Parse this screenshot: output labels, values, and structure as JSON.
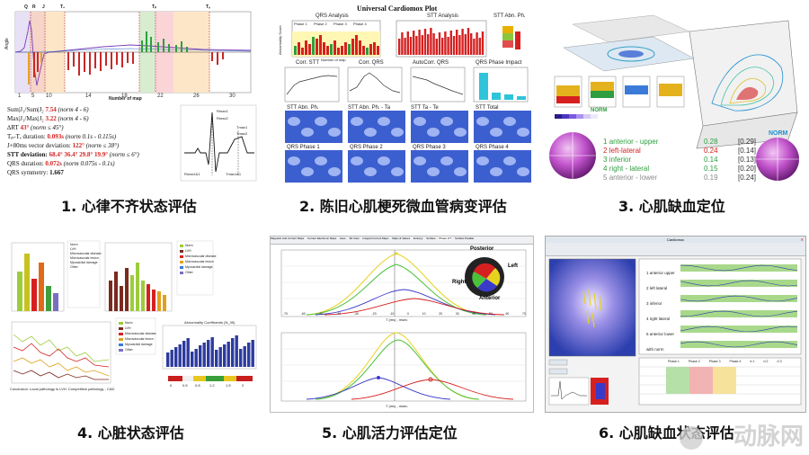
{
  "captions": [
    {
      "num": "1.",
      "text": "心律不齐状态评估"
    },
    {
      "num": "2.",
      "text": "陈旧心肌梗死微血管病变评估"
    },
    {
      "num": "3.",
      "text": "心肌缺血定位"
    },
    {
      "num": "4.",
      "text": "心脏状态评估"
    },
    {
      "num": "5.",
      "text": "心肌活力评估定位"
    },
    {
      "num": "6.",
      "text": "心肌缺血状态评估"
    }
  ],
  "panel1": {
    "ylabel": "Angle",
    "xlabel": "Number of map",
    "markers": [
      "Q",
      "R",
      "J",
      "T₀",
      "Tₚ",
      "Tₑ"
    ],
    "stats": [
      {
        "label": "Sum|J₁/Sum|J₂",
        "value": "7.54",
        "note": "(norm 4 - 6)"
      },
      {
        "label": "Max|J₁/Max|J₂",
        "value": "3.22",
        "note": "(norm 4 - 6)"
      },
      {
        "label": "∆RT",
        "value": "43°",
        "note": "(norm ≤ 45°)"
      },
      {
        "label": "Tₚ-Tₑ duration:",
        "value": "0.093s",
        "note": "(norm 0.1s - 0.115s)"
      },
      {
        "label": "J+80ms vector deviation:",
        "value": "122°",
        "note": "(norm ≤ 38°)"
      },
      {
        "label": "STT deviation:",
        "value": "68.4°  36.4°  29.8°  19.9°",
        "note": "(norm ≤ 6°)"
      },
      {
        "label": "QRS duration:",
        "value": "0.072s",
        "note": "(norm 0.075s - 0.1s)"
      },
      {
        "label": "QRS symmetry:",
        "value": "1.667",
        "note": ""
      }
    ],
    "ecg_labels": [
      "Rmax1",
      "Rmax2",
      "Tmax1",
      "Tmax2",
      "Rmax1&1",
      "Tmax1&1"
    ]
  },
  "panel2": {
    "title": "Universal Cardiomox Plot",
    "top_titles": [
      "QRS Analysis",
      "STT Analysis",
      "STT Abn. Ph."
    ],
    "phase_labels": [
      "Phase 1",
      "Phase 2",
      "Phase 3",
      "Phase 4"
    ],
    "ylabel": "Abnormality Score",
    "xlabel": "Number of map",
    "mid_titles": [
      "Corr. STT",
      "Corr. QRS",
      "AutoCorr. QRS",
      "QRS Phase Impact"
    ],
    "row3_titles": [
      "STT Abn. Ph.",
      "STT Abn. Ph. - Ta",
      "STT Ta - Te",
      "STT Total"
    ],
    "row4_titles": [
      "QRS Phase 1",
      "QRS Phase 2",
      "QRS Phase 3",
      "QRS Phase 4"
    ]
  },
  "panel3": {
    "norm_label": "NORM",
    "regions": [
      {
        "num": "1",
        "name": "anterior - upper",
        "value": "0.28",
        "ref": "[0.29]",
        "color": "#2e9e3f"
      },
      {
        "num": "2",
        "name": "left-lateral",
        "value": "0.24",
        "ref": "[0.14]",
        "color": "#d62020"
      },
      {
        "num": "3",
        "name": "inferior",
        "value": "0.14",
        "ref": "[0.13]",
        "color": "#2e9e3f"
      },
      {
        "num": "4",
        "name": "right - lateral",
        "value": "0.15",
        "ref": "[0.20]",
        "color": "#2e9e3f"
      },
      {
        "num": "5",
        "name": "anterior - lower",
        "value": "0.19",
        "ref": "[0.24]",
        "color": "#8a8a8a"
      }
    ]
  },
  "panel4": {
    "legend_items": [
      "Norm",
      "LVH",
      "Microvascular disease",
      "Microvascular lesion",
      "Myocardial damage",
      "Other"
    ],
    "chart_title": "Abnormality Coefficients (N_35)",
    "conclusion": "Conclusion: Local pathology is LVH. Competitive pathology - CAD",
    "scale_labels": [
      "0",
      "0.5",
      "0.8",
      "1.2",
      "1.5",
      "2"
    ]
  },
  "panel5": {
    "tabs": [
      "Magnetic And Current Maps",
      "Current Electronic Maps",
      "Axes",
      "3D View",
      "Integral Current Maps",
      "Maps & Values",
      "Entropy",
      "Surface",
      "Phase 2/T",
      "Surface Parallel"
    ],
    "orientation": [
      "Posterior",
      "Left",
      "Right",
      "Anterior"
    ],
    "xlabel": "T (ms) , msec",
    "x_ticks": [
      "-70",
      "-60",
      "-50",
      "-40",
      "-30",
      "-20",
      "-10",
      "0",
      "10",
      "20",
      "30",
      "40",
      "50",
      "60",
      "70"
    ]
  },
  "panel6": {
    "window_title": "Cardiomox",
    "regions": [
      "1 anterior upper",
      "2 left lateral",
      "3 inferior",
      "4 right lateral",
      "5 anterior lower",
      "with norm"
    ],
    "phase_headers": [
      "Phase 1",
      "Phase 2",
      "Phase 3",
      "Phase 4",
      "rt 1",
      "rt 2",
      "rt 3"
    ]
  },
  "watermark": "动脉网",
  "colors": {
    "accent_red": "#d62020",
    "accent_green": "#2e9e3f",
    "heat_blue": "#2c3fae"
  }
}
